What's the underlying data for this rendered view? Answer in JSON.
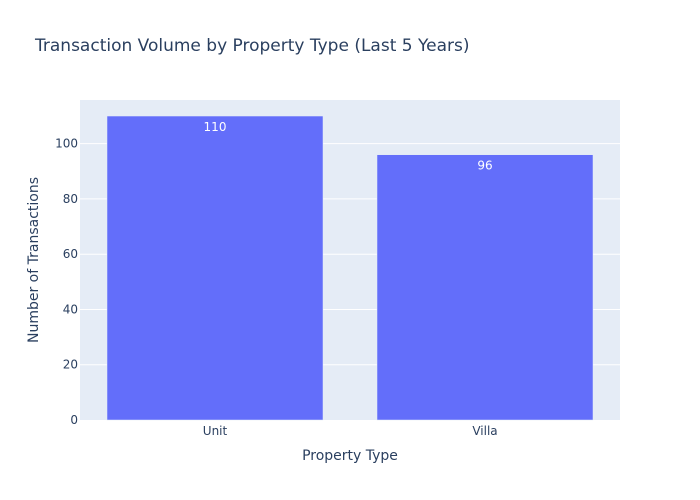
{
  "chart_data": {
    "type": "bar",
    "title": "Transaction Volume by Property Type (Last 5 Years)",
    "xlabel": "Property Type",
    "ylabel": "Number of Transactions",
    "categories": [
      "Unit",
      "Villa"
    ],
    "values": [
      110,
      96
    ],
    "value_labels": [
      "110",
      "96"
    ],
    "ylim": [
      0,
      115.8
    ],
    "yticks": [
      0,
      20,
      40,
      60,
      80,
      100
    ],
    "grid": true,
    "legend": "none",
    "colors": {
      "bar": "#636efa",
      "plot_background": "#e5ecf6",
      "grid": "#ffffff",
      "text": "#2a3f5f",
      "bar_label": "#ffffff"
    }
  }
}
